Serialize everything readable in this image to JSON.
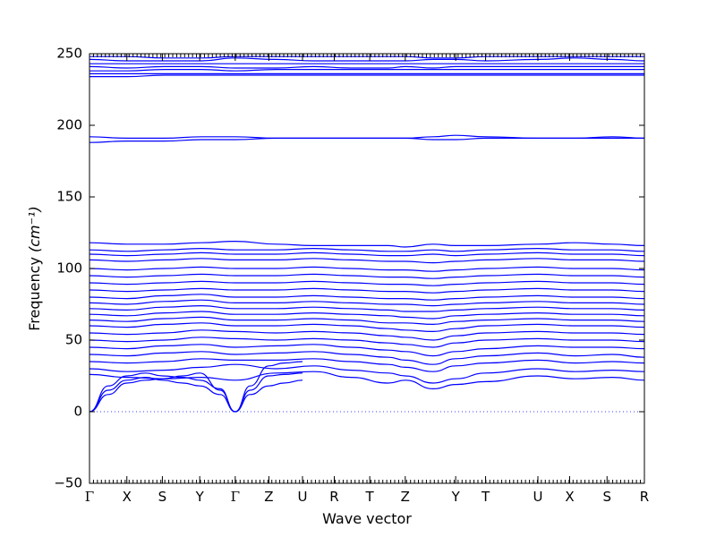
{
  "chart_data": {
    "type": "line",
    "title": "",
    "xlabel": "Wave vector",
    "ylabel": "Frequency",
    "ylabel_unit": "(cm⁻¹)",
    "ylim": [
      -50,
      250
    ],
    "yticks": [
      -50,
      0,
      50,
      100,
      150,
      200,
      250
    ],
    "ytick_labels": [
      "−50",
      "0",
      "50",
      "100",
      "150",
      "200",
      "250"
    ],
    "path_points": [
      "Γ",
      "X",
      "S",
      "Y",
      "Γ",
      "Z",
      "U",
      "R",
      "T",
      "Z",
      "Y",
      "T",
      "U",
      "X",
      "S",
      "R"
    ],
    "path_positions": [
      0,
      1.0,
      1.95,
      2.95,
      3.9,
      4.8,
      5.7,
      6.55,
      7.5,
      8.45,
      9.8,
      10.6,
      12.0,
      12.85,
      13.85,
      14.85
    ],
    "x_range": [
      0,
      14.85
    ],
    "zero_line": "dotted",
    "grid": false,
    "legend": "none",
    "band_color": "#0000ff",
    "series": [
      {
        "x": [
          0,
          0.5,
          1.0,
          1.5,
          1.95,
          2.5,
          2.95,
          3.5,
          3.9
        ],
        "values": [
          0,
          15,
          22,
          24,
          22,
          20,
          18,
          12,
          0
        ]
      },
      {
        "x": [
          0,
          0.5,
          1.0,
          1.5,
          1.95,
          2.5,
          2.95,
          3.5,
          3.9
        ],
        "values": [
          0,
          18,
          25,
          27,
          25,
          24,
          22,
          16,
          0
        ]
      },
      {
        "x": [
          0,
          0.5,
          1.0,
          1.5,
          1.95,
          2.5,
          2.95,
          3.5,
          3.9
        ],
        "values": [
          0,
          12,
          20,
          22,
          23,
          25,
          27,
          15,
          0
        ]
      },
      {
        "x": [
          3.9,
          4.3,
          4.8,
          5.2,
          5.7
        ],
        "values": [
          0,
          12,
          18,
          20,
          22
        ]
      },
      {
        "x": [
          3.9,
          4.3,
          4.8,
          5.2,
          5.7
        ],
        "values": [
          0,
          15,
          25,
          26,
          27
        ]
      },
      {
        "x": [
          3.9,
          4.3,
          4.8,
          5.2,
          5.7
        ],
        "values": [
          0,
          18,
          32,
          34,
          35
        ]
      },
      {
        "x": [
          0,
          1,
          2,
          3,
          3.9,
          5,
          6,
          7,
          8,
          8.45,
          9.2,
          9.8,
          10.6,
          12,
          13,
          14,
          14.85
        ],
        "values": [
          26,
          24,
          23,
          24,
          22,
          27,
          28,
          24,
          20,
          22,
          16,
          19,
          21,
          25,
          23,
          24,
          22
        ]
      },
      {
        "x": [
          0,
          1,
          2,
          3,
          3.9,
          5,
          6,
          7,
          8,
          8.45,
          9.2,
          9.8,
          10.6,
          12,
          13,
          14,
          14.85
        ],
        "values": [
          30,
          28,
          29,
          31,
          33,
          30,
          32,
          29,
          27,
          25,
          20,
          23,
          27,
          30,
          28,
          29,
          28
        ]
      },
      {
        "x": [
          0,
          1,
          2,
          3,
          3.9,
          5,
          6,
          7,
          8,
          8.45,
          9.2,
          9.8,
          10.6,
          12,
          13,
          14,
          14.85
        ],
        "values": [
          35,
          34,
          35,
          37,
          36,
          36,
          37,
          35,
          33,
          31,
          28,
          32,
          34,
          36,
          34,
          35,
          34
        ]
      },
      {
        "x": [
          0,
          1,
          2,
          3,
          3.9,
          5,
          6,
          7,
          8,
          8.45,
          9.2,
          9.8,
          10.6,
          12,
          13,
          14,
          14.85
        ],
        "values": [
          40,
          39,
          41,
          42,
          40,
          41,
          42,
          40,
          38,
          36,
          33,
          37,
          39,
          41,
          39,
          40,
          38
        ]
      },
      {
        "x": [
          0,
          1,
          2,
          3,
          3.9,
          5,
          6,
          7,
          8,
          8.45,
          9.2,
          9.8,
          10.6,
          12,
          13,
          14,
          14.85
        ],
        "values": [
          45,
          44,
          46,
          47,
          45,
          46,
          47,
          45,
          43,
          42,
          39,
          42,
          44,
          46,
          45,
          45,
          44
        ]
      },
      {
        "x": [
          0,
          1,
          2,
          3,
          3.9,
          5,
          6,
          7,
          8,
          8.45,
          9.2,
          9.8,
          10.6,
          12,
          13,
          14,
          14.85
        ],
        "values": [
          50,
          49,
          50,
          52,
          51,
          50,
          51,
          50,
          48,
          47,
          45,
          48,
          50,
          51,
          50,
          50,
          49
        ]
      },
      {
        "x": [
          0,
          1,
          2,
          3,
          3.9,
          5,
          6,
          7,
          8,
          8.45,
          9.2,
          9.8,
          10.6,
          12,
          13,
          14,
          14.85
        ],
        "values": [
          55,
          54,
          55,
          57,
          56,
          55,
          56,
          55,
          53,
          52,
          50,
          53,
          55,
          56,
          55,
          55,
          54
        ]
      },
      {
        "x": [
          0,
          1,
          2,
          3,
          3.9,
          5,
          6,
          7,
          8,
          8.45,
          9.2,
          9.8,
          10.6,
          12,
          13,
          14,
          14.85
        ],
        "values": [
          60,
          59,
          61,
          62,
          60,
          60,
          61,
          60,
          58,
          57,
          56,
          58,
          60,
          61,
          60,
          60,
          59
        ]
      },
      {
        "x": [
          0,
          1,
          2,
          3,
          3.9,
          5,
          6,
          7,
          8,
          8.45,
          9.2,
          9.8,
          10.6,
          12,
          13,
          14,
          14.85
        ],
        "values": [
          64,
          63,
          65,
          66,
          64,
          64,
          65,
          64,
          62,
          62,
          61,
          63,
          64,
          65,
          64,
          64,
          63
        ]
      },
      {
        "x": [
          0,
          1,
          2,
          3,
          3.9,
          5,
          6,
          7,
          8,
          8.45,
          9.2,
          9.8,
          10.6,
          12,
          13,
          14,
          14.85
        ],
        "values": [
          68,
          67,
          69,
          70,
          68,
          68,
          69,
          68,
          67,
          66,
          65,
          67,
          68,
          69,
          68,
          68,
          67
        ]
      },
      {
        "x": [
          0,
          1,
          2,
          3,
          3.9,
          5,
          6,
          7,
          8,
          8.45,
          9.2,
          9.8,
          10.6,
          12,
          13,
          14,
          14.85
        ],
        "values": [
          72,
          71,
          73,
          74,
          72,
          72,
          73,
          72,
          71,
          70,
          70,
          71,
          72,
          73,
          72,
          72,
          71
        ]
      },
      {
        "x": [
          0,
          1,
          2,
          3,
          3.9,
          5,
          6,
          7,
          8,
          8.45,
          9.2,
          9.8,
          10.6,
          12,
          13,
          14,
          14.85
        ],
        "values": [
          76,
          75,
          77,
          78,
          76,
          76,
          77,
          76,
          75,
          75,
          74,
          75,
          76,
          77,
          76,
          76,
          75
        ]
      },
      {
        "x": [
          0,
          1,
          2,
          3,
          3.9,
          5,
          6,
          7,
          8,
          8.45,
          9.2,
          9.8,
          10.6,
          12,
          13,
          14,
          14.85
        ],
        "values": [
          80,
          79,
          81,
          82,
          80,
          80,
          81,
          80,
          79,
          79,
          78,
          79,
          80,
          81,
          80,
          80,
          79
        ]
      },
      {
        "x": [
          0,
          1,
          2,
          3,
          3.9,
          5,
          6,
          7,
          8,
          8.45,
          9.2,
          9.8,
          10.6,
          12,
          13,
          14,
          14.85
        ],
        "values": [
          85,
          84,
          85,
          86,
          85,
          85,
          86,
          85,
          84,
          84,
          83,
          84,
          85,
          86,
          85,
          85,
          84
        ]
      },
      {
        "x": [
          0,
          1,
          2,
          3,
          3.9,
          5,
          6,
          7,
          8,
          8.45,
          9.2,
          9.8,
          10.6,
          12,
          13,
          14,
          14.85
        ],
        "values": [
          90,
          89,
          90,
          91,
          90,
          90,
          91,
          90,
          89,
          89,
          88,
          89,
          90,
          91,
          90,
          90,
          89
        ]
      },
      {
        "x": [
          0,
          1,
          2,
          3,
          3.9,
          5,
          6,
          7,
          8,
          8.45,
          9.2,
          9.8,
          10.6,
          12,
          13,
          14,
          14.85
        ],
        "values": [
          95,
          94,
          95,
          96,
          95,
          95,
          96,
          95,
          94,
          94,
          93,
          94,
          95,
          96,
          95,
          95,
          94
        ]
      },
      {
        "x": [
          0,
          1,
          2,
          3,
          3.9,
          5,
          6,
          7,
          8,
          8.45,
          9.2,
          9.8,
          10.6,
          12,
          13,
          14,
          14.85
        ],
        "values": [
          100,
          99,
          100,
          101,
          100,
          100,
          101,
          100,
          99,
          99,
          98,
          99,
          100,
          101,
          100,
          100,
          99
        ]
      },
      {
        "x": [
          0,
          1,
          2,
          3,
          3.9,
          5,
          6,
          7,
          8,
          8.45,
          9.2,
          9.8,
          10.6,
          12,
          13,
          14,
          14.85
        ],
        "values": [
          106,
          105,
          106,
          107,
          106,
          106,
          107,
          106,
          105,
          105,
          104,
          105,
          106,
          107,
          106,
          106,
          105
        ]
      },
      {
        "x": [
          0,
          1,
          2,
          3,
          3.9,
          5,
          6,
          7,
          8,
          8.45,
          9.2,
          9.8,
          10.6,
          12,
          13,
          14,
          14.85
        ],
        "values": [
          110,
          109,
          110,
          111,
          110,
          110,
          111,
          110,
          109,
          109,
          110,
          109,
          110,
          111,
          110,
          110,
          109
        ]
      },
      {
        "x": [
          0,
          1,
          2,
          3,
          3.9,
          5,
          6,
          7,
          8,
          8.45,
          9.2,
          9.8,
          10.6,
          12,
          13,
          14,
          14.85
        ],
        "values": [
          113,
          112,
          113,
          114,
          113,
          113,
          114,
          113,
          112,
          112,
          113,
          112,
          113,
          114,
          113,
          113,
          112
        ]
      },
      {
        "x": [
          0,
          1,
          2,
          3,
          3.9,
          5,
          6,
          7,
          8,
          8.45,
          9.2,
          9.8,
          10.6,
          12,
          13,
          14,
          14.85
        ],
        "values": [
          118,
          117,
          117,
          118,
          119,
          117,
          116,
          116,
          116,
          115,
          117,
          116,
          116,
          117,
          118,
          117,
          116
        ]
      },
      {
        "x": [
          0,
          1,
          2,
          3,
          3.9,
          5,
          6,
          7,
          8,
          8.45,
          9.2,
          9.8,
          10.6,
          12,
          13,
          14,
          14.85
        ],
        "values": [
          188,
          189,
          189,
          190,
          190,
          191,
          191,
          191,
          191,
          191,
          190,
          190,
          191,
          191,
          191,
          191,
          191
        ]
      },
      {
        "x": [
          0,
          1,
          2,
          3,
          3.9,
          5,
          6,
          7,
          8,
          8.45,
          9.2,
          9.8,
          10.6,
          12,
          13,
          14,
          14.85
        ],
        "values": [
          192,
          191,
          191,
          192,
          192,
          191,
          191,
          191,
          191,
          191,
          192,
          193,
          192,
          191,
          191,
          192,
          191
        ]
      },
      {
        "x": [
          0,
          1,
          2,
          3,
          3.9,
          5,
          6,
          7,
          8,
          8.45,
          9.2,
          9.8,
          10.6,
          12,
          13,
          14,
          14.85
        ],
        "values": [
          234,
          234,
          235,
          235,
          235,
          235,
          235,
          235,
          235,
          235,
          235,
          235,
          235,
          235,
          235,
          235,
          235
        ]
      },
      {
        "x": [
          0,
          1,
          2,
          3,
          3.9,
          5,
          6,
          7,
          8,
          8.45,
          9.2,
          9.8,
          10.6,
          12,
          13,
          14,
          14.85
        ],
        "values": [
          236,
          236,
          236,
          236,
          236,
          236,
          236,
          236,
          236,
          236,
          236,
          236,
          236,
          236,
          236,
          236,
          236
        ]
      },
      {
        "x": [
          0,
          1,
          2,
          3,
          3.9,
          5,
          6,
          7,
          8,
          8.45,
          9.2,
          9.8,
          10.6,
          12,
          13,
          14,
          14.85
        ],
        "values": [
          238,
          238,
          239,
          239,
          238,
          239,
          239,
          239,
          239,
          239,
          239,
          239,
          239,
          239,
          239,
          239,
          239
        ]
      },
      {
        "x": [
          0,
          1,
          2,
          3,
          3.9,
          5,
          6,
          7,
          8,
          8.45,
          9.2,
          9.8,
          10.6,
          12,
          13,
          14,
          14.85
        ],
        "values": [
          241,
          240,
          241,
          241,
          240,
          240,
          241,
          240,
          240,
          241,
          240,
          241,
          241,
          241,
          241,
          241,
          241
        ]
      },
      {
        "x": [
          0,
          1,
          2,
          3,
          3.9,
          5,
          6,
          7,
          8,
          8.45,
          9.2,
          9.8,
          10.6,
          12,
          13,
          14,
          14.85
        ],
        "values": [
          243,
          243,
          243,
          243,
          243,
          243,
          243,
          243,
          243,
          243,
          243,
          243,
          243,
          243,
          243,
          243,
          243
        ]
      },
      {
        "x": [
          0,
          1,
          2,
          3,
          3.9,
          5,
          6,
          7,
          8,
          8.45,
          9.2,
          9.8,
          10.6,
          12,
          13,
          14,
          14.85
        ],
        "values": [
          246,
          245,
          245,
          245,
          247,
          246,
          245,
          245,
          245,
          245,
          246,
          246,
          245,
          246,
          247,
          246,
          245
        ]
      },
      {
        "x": [
          0,
          1,
          2,
          3,
          3.9,
          5,
          6,
          7,
          8,
          8.45,
          9.2,
          9.8,
          10.6,
          12,
          13,
          14,
          14.85
        ],
        "values": [
          248,
          248,
          247,
          247,
          248,
          248,
          248,
          248,
          248,
          248,
          247,
          247,
          248,
          248,
          248,
          248,
          248
        ]
      }
    ]
  }
}
